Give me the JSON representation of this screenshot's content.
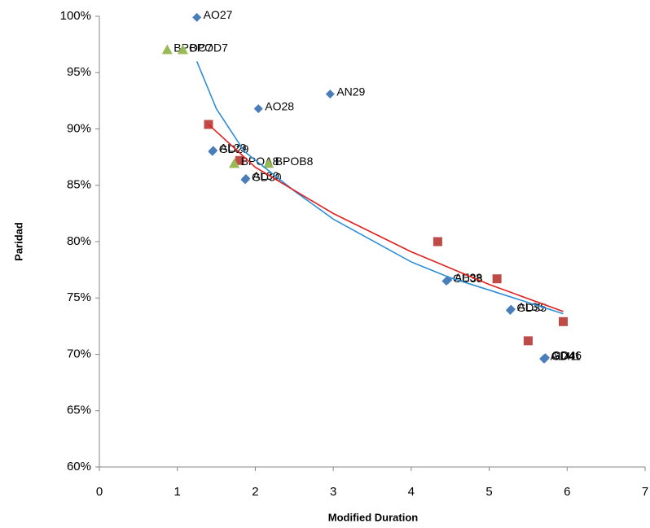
{
  "chart_data": {
    "type": "scatter",
    "xlabel": "Modified Duration",
    "ylabel": "Paridad",
    "xlim": [
      0,
      7
    ],
    "xticks": [
      0,
      1,
      2,
      3,
      4,
      5,
      6,
      7
    ],
    "ylim": [
      60,
      100
    ],
    "yticks": [
      {
        "value": 60,
        "label": "60%"
      },
      {
        "value": 65,
        "label": "65%"
      },
      {
        "value": 70,
        "label": "70%"
      },
      {
        "value": 75,
        "label": "75%"
      },
      {
        "value": 80,
        "label": "80%"
      },
      {
        "value": 85,
        "label": "85%"
      },
      {
        "value": 90,
        "label": "90%"
      },
      {
        "value": 95,
        "label": "95%"
      },
      {
        "value": 100,
        "label": "100%"
      }
    ],
    "grid": false,
    "series": [
      {
        "marker": "diamond",
        "color": "#4a7ebb",
        "x": [
          1.25,
          2.96,
          2.04,
          1.45,
          1.46,
          1.88,
          1.87,
          4.45,
          4.47,
          5.27,
          5.28,
          5.72,
          5.7,
          5.71
        ],
        "values": [
          99.9,
          93.1,
          91.8,
          88.0,
          88.1,
          85.6,
          85.5,
          76.5,
          76.6,
          73.9,
          74.0,
          69.7,
          69.6,
          69.6
        ],
        "labels": [
          "AO27",
          "AN29",
          "AO28",
          "GD29",
          "AL29",
          "AL30",
          "GD30",
          "GD38",
          "AE38",
          "GD35",
          "AL35",
          "GD46",
          "AL41",
          "GD41"
        ]
      },
      {
        "marker": "square",
        "color": "#be4b48",
        "x": [
          1.4,
          1.8,
          4.34,
          5.1,
          5.5,
          5.95
        ],
        "values": [
          90.4,
          87.2,
          80.0,
          76.7,
          71.2,
          72.9
        ]
      },
      {
        "marker": "triangle",
        "color": "#98b954",
        "x": [
          0.87,
          1.07,
          1.73,
          2.17
        ],
        "values": [
          97.0,
          97.0,
          86.9,
          86.9
        ],
        "labels": [
          "BPOC7",
          "BPOD7",
          "BPOA8",
          "BPOB8"
        ]
      },
      {
        "marker": "line",
        "color": "#2e8fd8",
        "x": [
          1.25,
          1.5,
          1.86,
          2.5,
          3,
          4,
          4.5,
          5,
          5.95
        ],
        "values": [
          96.0,
          91.8,
          88.0,
          84.5,
          82.0,
          78.2,
          76.8,
          75.7,
          73.6
        ]
      },
      {
        "marker": "line",
        "color": "#e02020",
        "x": [
          1.4,
          2,
          3,
          4,
          5,
          5.95
        ],
        "values": [
          90.4,
          86.6,
          82.5,
          79.1,
          76.2,
          73.8
        ]
      }
    ]
  }
}
